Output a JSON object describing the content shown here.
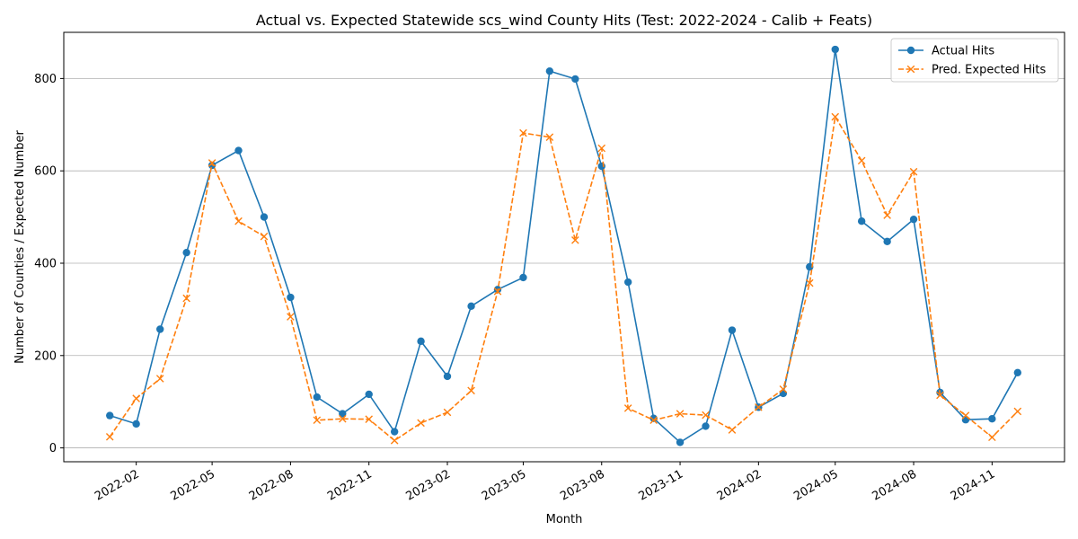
{
  "chart_data": {
    "type": "line",
    "title": "Actual vs. Expected Statewide scs_wind County Hits (Test: 2022-2024 - Calib + Feats)",
    "xlabel": "Month",
    "ylabel": "Number of Counties / Expected Number",
    "ylim": [
      -30,
      900
    ],
    "xlim": [
      "2021-11-08",
      "2025-01-25"
    ],
    "grid": "horizontal",
    "legend_position": "top-right",
    "yticks": [
      0,
      200,
      400,
      600,
      800
    ],
    "ytick_labels": [
      "0",
      "200",
      "400",
      "600",
      "800"
    ],
    "xticks": [
      "2022-02-01",
      "2022-05-01",
      "2022-08-01",
      "2022-11-01",
      "2023-02-01",
      "2023-05-01",
      "2023-08-01",
      "2023-11-01",
      "2024-02-01",
      "2024-05-01",
      "2024-08-01",
      "2024-11-01"
    ],
    "xtick_labels": [
      "2022-02",
      "2022-05",
      "2022-08",
      "2022-11",
      "2023-02",
      "2023-05",
      "2023-08",
      "2023-11",
      "2024-02",
      "2024-05",
      "2024-08",
      "2024-11"
    ],
    "x": [
      "2022-01-01",
      "2022-02-01",
      "2022-03-01",
      "2022-04-01",
      "2022-05-01",
      "2022-06-01",
      "2022-07-01",
      "2022-08-01",
      "2022-09-01",
      "2022-10-01",
      "2022-11-01",
      "2022-12-01",
      "2023-01-01",
      "2023-02-01",
      "2023-03-01",
      "2023-04-01",
      "2023-05-01",
      "2023-06-01",
      "2023-07-01",
      "2023-08-01",
      "2023-09-01",
      "2023-10-01",
      "2023-11-01",
      "2023-12-01",
      "2024-01-01",
      "2024-02-01",
      "2024-03-01",
      "2024-04-01",
      "2024-05-01",
      "2024-06-01",
      "2024-07-01",
      "2024-08-01",
      "2024-09-01",
      "2024-10-01",
      "2024-11-01",
      "2024-12-01"
    ],
    "series": [
      {
        "name": "Actual Hits",
        "color": "#1f77b4",
        "marker": "circle",
        "linestyle": "solid",
        "values": [
          70,
          52,
          257,
          423,
          612,
          644,
          500,
          326,
          110,
          74,
          116,
          35,
          231,
          155,
          307,
          343,
          369,
          816,
          799,
          610,
          359,
          64,
          12,
          47,
          255,
          88,
          118,
          392,
          863,
          491,
          447,
          495,
          120,
          61,
          63,
          163
        ]
      },
      {
        "name": "Pred. Expected Hits",
        "color": "#ff7f0e",
        "marker": "x",
        "linestyle": "dashed",
        "values": [
          24,
          107,
          150,
          324,
          617,
          491,
          458,
          284,
          60,
          63,
          62,
          16,
          54,
          77,
          124,
          339,
          682,
          673,
          450,
          649,
          86,
          60,
          74,
          71,
          39,
          88,
          127,
          357,
          717,
          622,
          504,
          598,
          114,
          70,
          23,
          79
        ]
      }
    ]
  }
}
